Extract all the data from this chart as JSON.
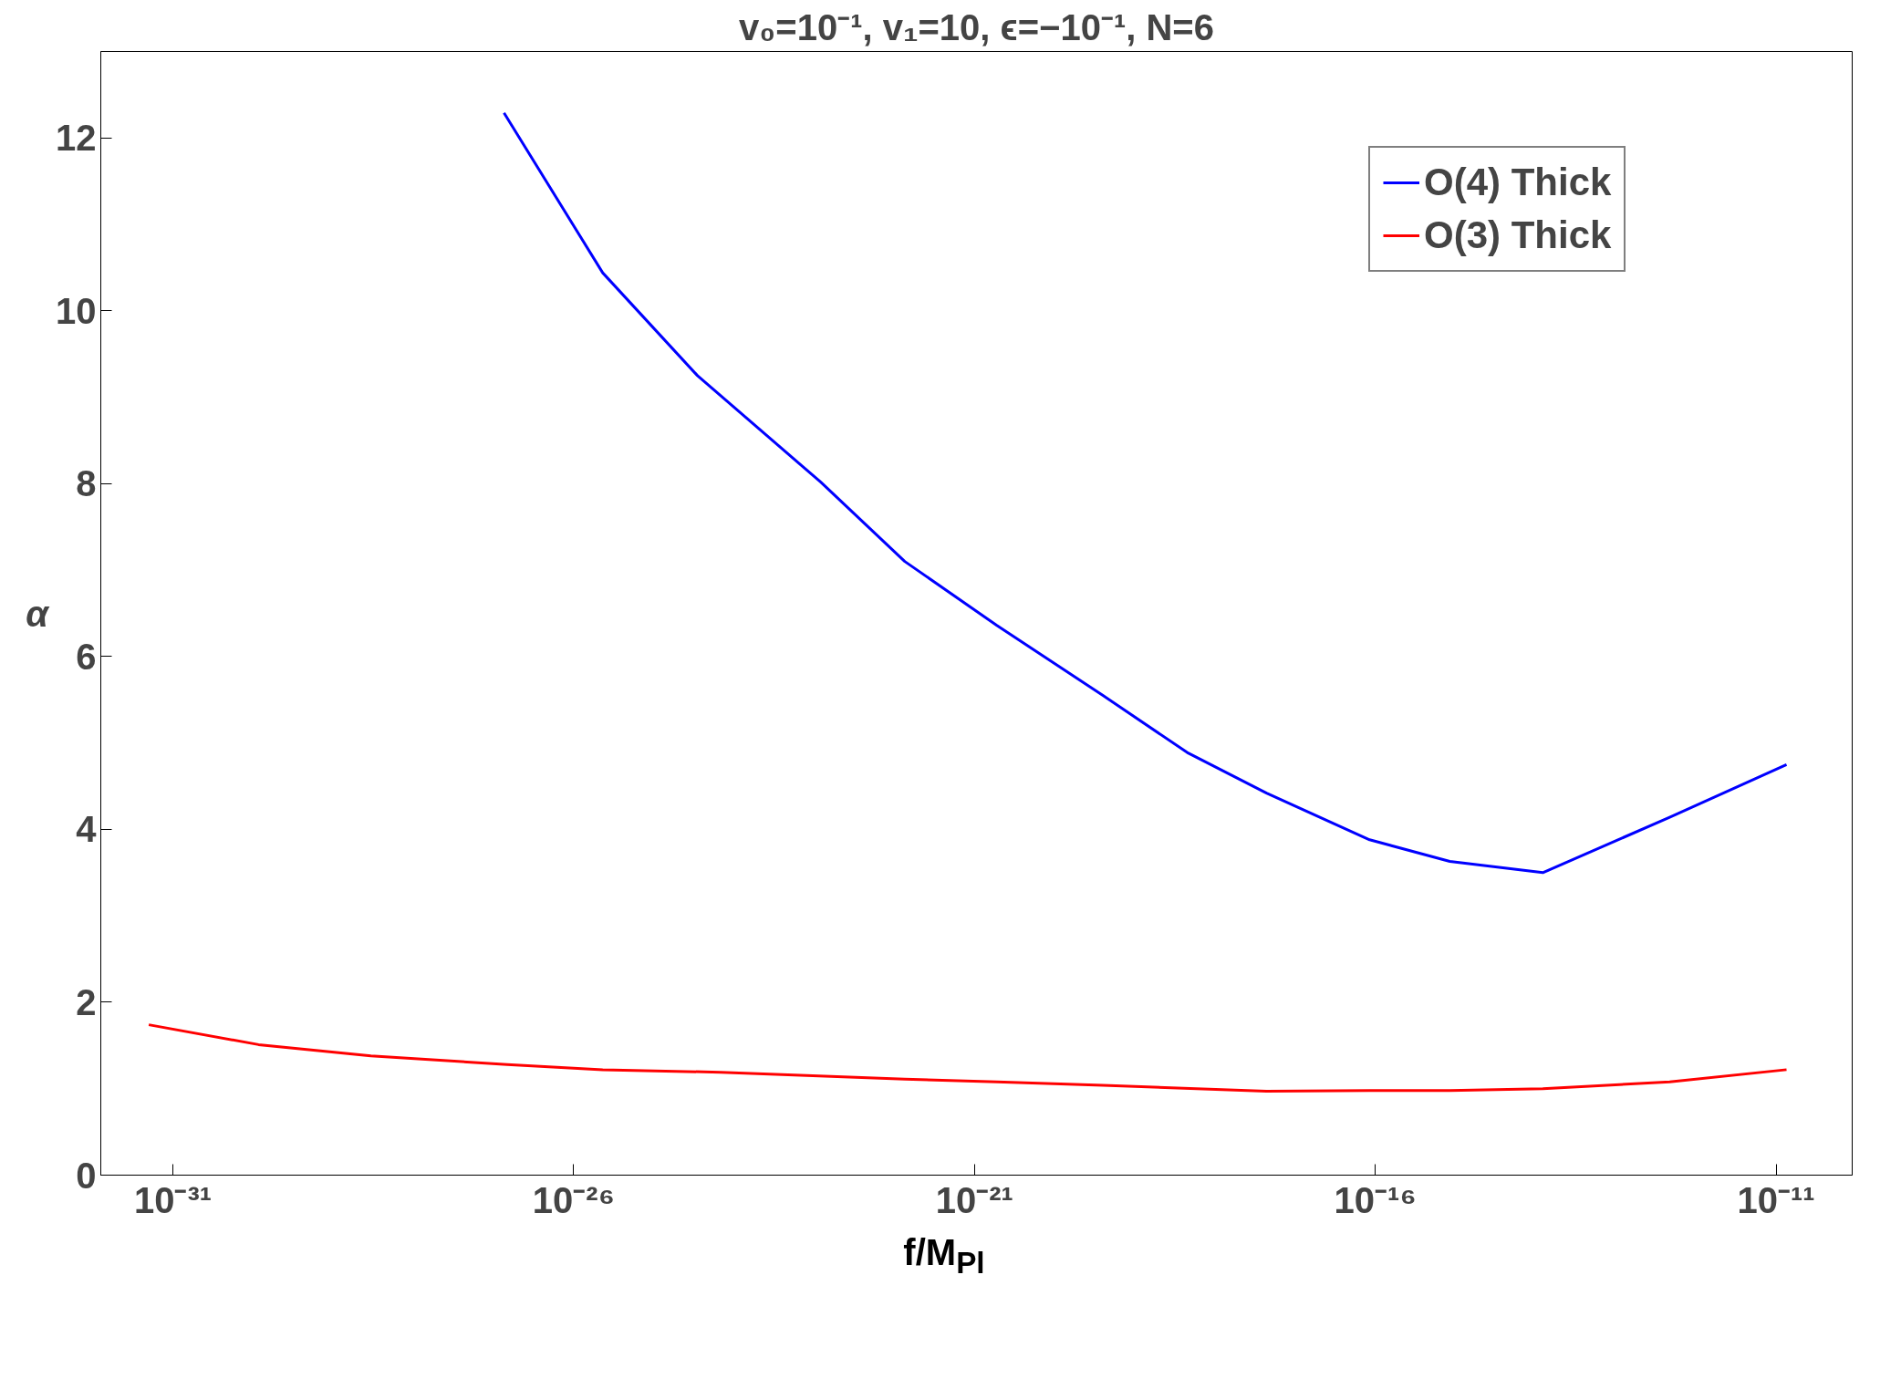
{
  "chart_data": {
    "type": "line",
    "title": "v₀=10⁻¹, v₁=10, ϵ=−10⁻¹, N=6",
    "xlabel": "f/M$_{Pl}$",
    "ylabel": "α",
    "log": "x",
    "grid": false,
    "legend": "top right",
    "marker": "none",
    "line_style": "solid",
    "xlim": [
      1.26e-32,
      8.9e-11
    ],
    "ylim": [
      0,
      13
    ],
    "xticks": [
      {
        "value": 1e-31,
        "label": "10⁻³¹"
      },
      {
        "value": 1e-26,
        "label": "10⁻²⁶"
      },
      {
        "value": 1e-21,
        "label": "10⁻²¹"
      },
      {
        "value": 1e-16,
        "label": "10⁻¹⁶"
      },
      {
        "value": 1e-11,
        "label": "10⁻¹¹"
      }
    ],
    "yticks": [
      0,
      2,
      4,
      6,
      8,
      10,
      12
    ],
    "series": [
      {
        "name": "O(4) Thick",
        "color": "#0000ff",
        "x": [
          1.35e-27,
          2.3e-26,
          3.5e-25,
          1.2e-23,
          1.35e-22,
          1.9e-21,
          4e-20,
          4.5e-19,
          4.4e-18,
          8.5e-17,
          8.5e-16,
          1.23e-14,
          4.7e-13,
          1.35e-11
        ],
        "values": [
          12.29,
          10.44,
          9.25,
          8.02,
          7.1,
          6.36,
          5.55,
          4.89,
          4.42,
          3.88,
          3.63,
          3.5,
          4.14,
          4.75
        ]
      },
      {
        "name": "O(3) Thick",
        "color": "#ff0000",
        "x": [
          5e-32,
          1.17e-30,
          2.95e-29,
          1.48e-27,
          2.3e-26,
          6.8e-25,
          1.35e-22,
          1.9e-21,
          4e-20,
          4.4e-18,
          8.5e-17,
          8.5e-16,
          1.23e-14,
          4.7e-13,
          1.35e-11
        ],
        "values": [
          1.74,
          1.51,
          1.38,
          1.28,
          1.22,
          1.19,
          1.11,
          1.08,
          1.04,
          0.97,
          0.98,
          0.98,
          1.0,
          1.08,
          1.22
        ]
      }
    ]
  }
}
